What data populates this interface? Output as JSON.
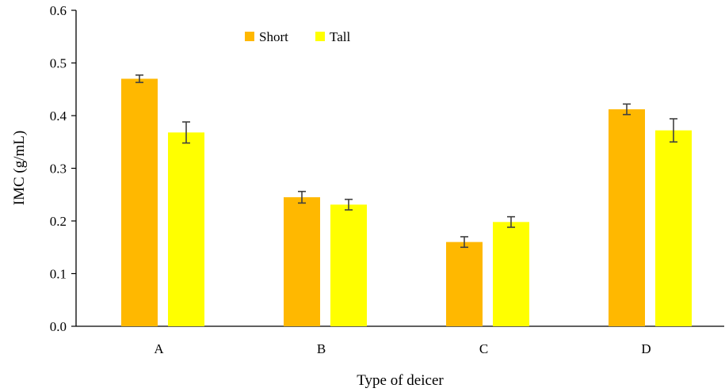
{
  "chart_data": {
    "type": "bar",
    "title": "",
    "xlabel": "Type of deicer",
    "ylabel": "IMC (g/mL)",
    "categories": [
      "A",
      "B",
      "C",
      "D"
    ],
    "ylim": [
      0,
      0.6
    ],
    "yticks": [
      "0.0",
      "0.1",
      "0.2",
      "0.3",
      "0.4",
      "0.5",
      "0.6"
    ],
    "grid": false,
    "legend_position": "top-center",
    "series": [
      {
        "name": "Short",
        "color": "#FFB800",
        "values": [
          0.47,
          0.245,
          0.16,
          0.412
        ],
        "errors": [
          0.007,
          0.011,
          0.01,
          0.01
        ]
      },
      {
        "name": "Tall",
        "color": "#FFFF00",
        "values": [
          0.368,
          0.231,
          0.198,
          0.372
        ],
        "errors": [
          0.02,
          0.01,
          0.01,
          0.022
        ]
      }
    ]
  }
}
